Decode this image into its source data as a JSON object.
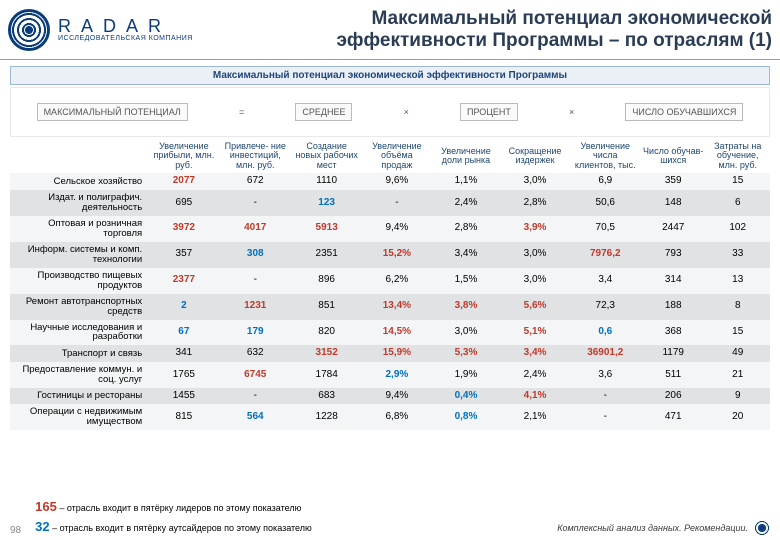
{
  "colors": {
    "brand": "#0b3c7a",
    "title": "#333",
    "top5": "#c0392b",
    "low5": "#0070c0",
    "row_odd": "#f4f5f6",
    "row_even": "#e0e2e4",
    "sub_bg": "#eaf0f6"
  },
  "header": {
    "brand": "R A D A R",
    "brand_sub": "ИССЛЕДОВАТЕЛЬСКАЯ КОМПАНИЯ",
    "title": "Максимальный потенциал экономической эффективности Программы – по отраслям (1)"
  },
  "subheader": "Максимальный потенциал экономической эффективности Программы",
  "formula_boxes": [
    "МАКСИМАЛЬНЫЙ ПОТЕНЦИАЛ",
    "=",
    "СРЕДНЕЕ",
    "×",
    "ПРОЦЕНТ",
    "×",
    "ЧИСЛО ОБУЧАВШИХСЯ"
  ],
  "columns": [
    "",
    "Увеличение прибыли, млн. руб.",
    "Привлече- ние инвестиций, млн. руб.",
    "Создание новых рабочих мест",
    "Увеличение объёма продаж",
    "Увеличение доли рынка",
    "Сокращение издержек",
    "Увеличение числа клиентов, тыс.",
    "Число обучав- шихся",
    "Затраты на обучение, млн. руб."
  ],
  "rows": [
    {
      "label": "Сельское хозяйство",
      "cells": [
        "2077",
        "672",
        "1110",
        "9,6%",
        "1,1%",
        "3,0%",
        "6,9",
        "359",
        "15"
      ],
      "marks": [
        "top",
        "",
        "",
        "",
        "",
        "",
        "",
        "",
        ""
      ]
    },
    {
      "label": "Издат. и полиграфич. деятельность",
      "cells": [
        "695",
        "-",
        "123",
        "-",
        "2,4%",
        "2,8%",
        "50,6",
        "148",
        "6"
      ],
      "marks": [
        "",
        "",
        "low",
        "",
        "",
        "",
        "",
        "",
        ""
      ]
    },
    {
      "label": "Оптовая и розничная торговля",
      "cells": [
        "3972",
        "4017",
        "5913",
        "9,4%",
        "2,8%",
        "3,9%",
        "70,5",
        "2447",
        "102"
      ],
      "marks": [
        "top",
        "top",
        "top",
        "",
        "",
        "top",
        "",
        "",
        ""
      ]
    },
    {
      "label": "Информ. системы и комп. технологии",
      "cells": [
        "357",
        "308",
        "2351",
        "15,2%",
        "3,4%",
        "3,0%",
        "7976,2",
        "793",
        "33"
      ],
      "marks": [
        "",
        "low",
        "",
        "top",
        "",
        "",
        "top",
        "",
        ""
      ]
    },
    {
      "label": "Производство пищевых продуктов",
      "cells": [
        "2377",
        "-",
        "896",
        "6,2%",
        "1,5%",
        "3,0%",
        "3,4",
        "314",
        "13"
      ],
      "marks": [
        "top",
        "",
        "",
        "",
        "",
        "",
        "",
        "",
        ""
      ]
    },
    {
      "label": "Ремонт автотранспортных средств",
      "cells": [
        "2",
        "1231",
        "851",
        "13,4%",
        "3,8%",
        "5,6%",
        "72,3",
        "188",
        "8"
      ],
      "marks": [
        "low",
        "top",
        "",
        "top",
        "top",
        "top",
        "",
        "",
        ""
      ]
    },
    {
      "label": "Научные исследования и разработки",
      "cells": [
        "67",
        "179",
        "820",
        "14,5%",
        "3,0%",
        "5,1%",
        "0,6",
        "368",
        "15"
      ],
      "marks": [
        "low",
        "low",
        "",
        "top",
        "",
        "top",
        "low",
        "",
        ""
      ]
    },
    {
      "label": "Транспорт и связь",
      "cells": [
        "341",
        "632",
        "3152",
        "15,9%",
        "5,3%",
        "3,4%",
        "36901,2",
        "1179",
        "49"
      ],
      "marks": [
        "",
        "",
        "top",
        "top",
        "top",
        "top",
        "top",
        "",
        ""
      ]
    },
    {
      "label": "Предоставление коммун. и соц. услуг",
      "cells": [
        "1765",
        "6745",
        "1784",
        "2,9%",
        "1,9%",
        "2,4%",
        "3,6",
        "511",
        "21"
      ],
      "marks": [
        "",
        "top",
        "",
        "low",
        "",
        "",
        "",
        "",
        ""
      ]
    },
    {
      "label": "Гостиницы и рестораны",
      "cells": [
        "1455",
        "-",
        "683",
        "9,4%",
        "0,4%",
        "4,1%",
        "-",
        "206",
        "9"
      ],
      "marks": [
        "",
        "",
        "",
        "",
        "low",
        "top",
        "",
        "",
        ""
      ]
    },
    {
      "label": "Операции с недвижимым имуществом",
      "cells": [
        "815",
        "564",
        "1228",
        "6,8%",
        "0,8%",
        "2,1%",
        "-",
        "471",
        "20"
      ],
      "marks": [
        "",
        "low",
        "",
        "",
        "low",
        "",
        "",
        "",
        ""
      ]
    }
  ],
  "legend": {
    "top_num": "165",
    "top_text": " – отрасль входит в пятёрку лидеров по этому показателю",
    "low_num": "32",
    "low_text": " – отрасль входит в пятёрку аутсайдеров по этому показателю"
  },
  "page_number": "98",
  "footer_right": "Комплексный анализ данных. Рекомендации."
}
